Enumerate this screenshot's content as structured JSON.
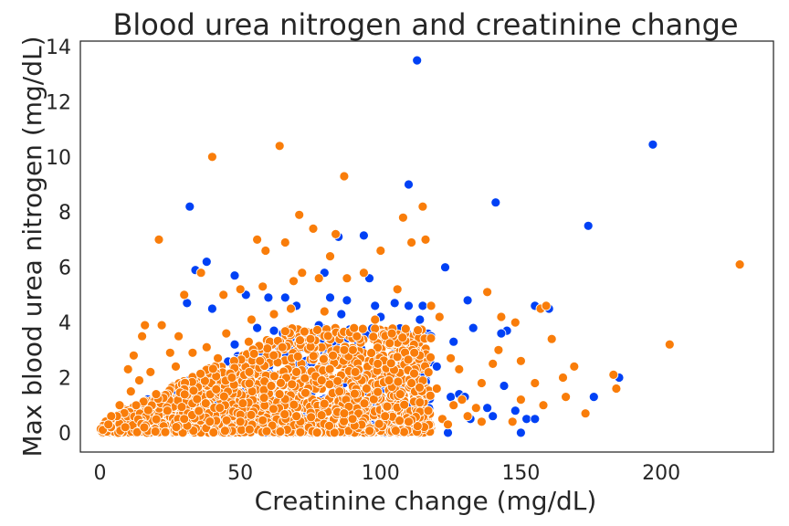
{
  "chart_data": {
    "type": "scatter",
    "title": "Blood urea nitrogen and creatinine change",
    "xlabel": "Creatinine change (mg/dL)",
    "ylabel": "Max blood urea nitrogen (mg/dL)",
    "xlim": [
      -7,
      240
    ],
    "ylim": [
      -0.7,
      14.2
    ],
    "xticks": [
      0,
      50,
      100,
      150,
      200
    ],
    "yticks": [
      0,
      2,
      4,
      6,
      8,
      10,
      12,
      14
    ],
    "grid": false,
    "legend": "none",
    "colors": {
      "series_blue": "#0041f5",
      "series_orange": "#f97d0a",
      "marker_edge": "#ffffff",
      "axes_edge": "#262626"
    },
    "series": [
      {
        "color_key": "series_blue",
        "points": [
          [
            113,
            13.5
          ],
          [
            197,
            10.45
          ],
          [
            32,
            8.2
          ],
          [
            110,
            9.0
          ],
          [
            141,
            8.35
          ],
          [
            174,
            7.5
          ],
          [
            38,
            6.2
          ],
          [
            34,
            5.9
          ],
          [
            85,
            7.1
          ],
          [
            94,
            7.15
          ],
          [
            123,
            6.0
          ],
          [
            48,
            5.7
          ],
          [
            60,
            4.9
          ],
          [
            66,
            4.9
          ],
          [
            70,
            4.6
          ],
          [
            80,
            5.8
          ],
          [
            82,
            4.9
          ],
          [
            88,
            4.8
          ],
          [
            96,
            5.6
          ],
          [
            98,
            4.6
          ],
          [
            105,
            4.7
          ],
          [
            110,
            4.6
          ],
          [
            115,
            4.6
          ],
          [
            31,
            4.7
          ],
          [
            40,
            4.5
          ],
          [
            52,
            5.0
          ],
          [
            56,
            3.8
          ],
          [
            62,
            3.7
          ],
          [
            74,
            3.5
          ],
          [
            78,
            3.9
          ],
          [
            86,
            4.3
          ],
          [
            92,
            3.2
          ],
          [
            100,
            4.2
          ],
          [
            108,
            3.3
          ],
          [
            114,
            4.1
          ],
          [
            118,
            3.5
          ],
          [
            126,
            3.3
          ],
          [
            131,
            4.8
          ],
          [
            133,
            3.8
          ],
          [
            145,
            3.7
          ],
          [
            143,
            3.6
          ],
          [
            155,
            4.6
          ],
          [
            160,
            4.5
          ],
          [
            115,
            2.2
          ],
          [
            120,
            2.4
          ],
          [
            125,
            1.3
          ],
          [
            128,
            1.4
          ],
          [
            130,
            1.3
          ],
          [
            132,
            0.5
          ],
          [
            124,
            0.0
          ],
          [
            140,
            0.6
          ],
          [
            148,
            0.8
          ],
          [
            150,
            0.0
          ],
          [
            152,
            0.5
          ],
          [
            155,
            0.5
          ],
          [
            176,
            1.3
          ],
          [
            185,
            2.0
          ],
          [
            144,
            1.7
          ],
          [
            138,
            0.9
          ],
          [
            48,
            3.2
          ],
          [
            72,
            2.4
          ],
          [
            90,
            2.6
          ],
          [
            102,
            2.1
          ],
          [
            95,
            1.5
          ]
        ]
      },
      {
        "color_key": "series_orange",
        "points": [
          [
            64,
            10.4
          ],
          [
            40,
            10.0
          ],
          [
            87,
            9.3
          ],
          [
            71,
            7.9
          ],
          [
            116,
            7.0
          ],
          [
            108,
            7.8
          ],
          [
            21,
            7.0
          ],
          [
            56,
            7.0
          ],
          [
            59,
            6.6
          ],
          [
            66,
            6.9
          ],
          [
            76,
            7.4
          ],
          [
            84,
            7.2
          ],
          [
            100,
            6.6
          ],
          [
            111,
            6.9
          ],
          [
            115,
            8.2
          ],
          [
            82,
            6.4
          ],
          [
            36,
            5.8
          ],
          [
            30,
            5.0
          ],
          [
            44,
            5.0
          ],
          [
            50,
            5.2
          ],
          [
            58,
            5.3
          ],
          [
            69,
            5.5
          ],
          [
            72,
            5.8
          ],
          [
            78,
            5.6
          ],
          [
            88,
            5.6
          ],
          [
            94,
            5.8
          ],
          [
            106,
            5.2
          ],
          [
            118,
            4.6
          ],
          [
            121,
            4.2
          ],
          [
            138,
            5.1
          ],
          [
            148,
            4.0
          ],
          [
            157,
            4.5
          ],
          [
            159,
            4.6
          ],
          [
            161,
            3.4
          ],
          [
            143,
            4.2
          ],
          [
            22,
            3.9
          ],
          [
            28,
            3.5
          ],
          [
            15,
            3.5
          ],
          [
            16,
            3.9
          ],
          [
            12,
            2.8
          ],
          [
            10,
            2.3
          ],
          [
            25,
            2.9
          ],
          [
            45,
            3.6
          ],
          [
            54,
            4.1
          ],
          [
            62,
            4.3
          ],
          [
            68,
            4.5
          ],
          [
            80,
            4.4
          ],
          [
            98,
            4.1
          ],
          [
            104,
            3.6
          ],
          [
            112,
            2.9
          ],
          [
            125,
            2.7
          ],
          [
            128,
            2.3
          ],
          [
            136,
            1.8
          ],
          [
            140,
            2.5
          ],
          [
            142,
            3.0
          ],
          [
            150,
            2.6
          ],
          [
            155,
            1.8
          ],
          [
            165,
            2.0
          ],
          [
            169,
            2.4
          ],
          [
            166,
            1.3
          ],
          [
            173,
            0.7
          ],
          [
            183,
            2.1
          ],
          [
            184,
            1.6
          ],
          [
            203,
            3.2
          ],
          [
            228,
            6.1
          ],
          [
            136,
            0.4
          ],
          [
            147,
            0.4
          ],
          [
            150,
            1.2
          ],
          [
            158,
            1.0
          ],
          [
            131,
            0.6
          ],
          [
            122,
            0.5
          ],
          [
            126,
            1.0
          ],
          [
            1,
            0.1
          ],
          [
            4,
            0.6
          ],
          [
            7,
            1.0
          ],
          [
            9,
            0.2
          ],
          [
            3,
            0.3
          ],
          [
            11,
            1.5
          ],
          [
            14,
            1.9
          ],
          [
            18,
            2.2
          ],
          [
            20,
            1.4
          ],
          [
            24,
            0.8
          ],
          [
            27,
            2.4
          ],
          [
            33,
            2.9
          ],
          [
            38,
            3.1
          ],
          [
            42,
            2.7
          ],
          [
            47,
            2.0
          ],
          [
            53,
            3.3
          ],
          [
            57,
            2.6
          ],
          [
            61,
            1.7
          ],
          [
            65,
            3.1
          ],
          [
            70,
            2.2
          ],
          [
            75,
            3.4
          ],
          [
            79,
            1.9
          ],
          [
            83,
            2.8
          ],
          [
            87,
            3.0
          ],
          [
            91,
            2.2
          ],
          [
            95,
            1.6
          ],
          [
            99,
            2.5
          ],
          [
            103,
            1.9
          ],
          [
            107,
            1.4
          ],
          [
            111,
            1.8
          ],
          [
            114,
            1.1
          ],
          [
            117,
            0.8
          ],
          [
            120,
            1.6
          ],
          [
            124,
            0.3
          ],
          [
            129,
            1.2
          ],
          [
            134,
            0.9
          ],
          [
            30,
            0.5
          ],
          [
            50,
            0.4
          ],
          [
            70,
            0.6
          ],
          [
            90,
            0.5
          ],
          [
            110,
            0.4
          ]
        ]
      }
    ]
  }
}
